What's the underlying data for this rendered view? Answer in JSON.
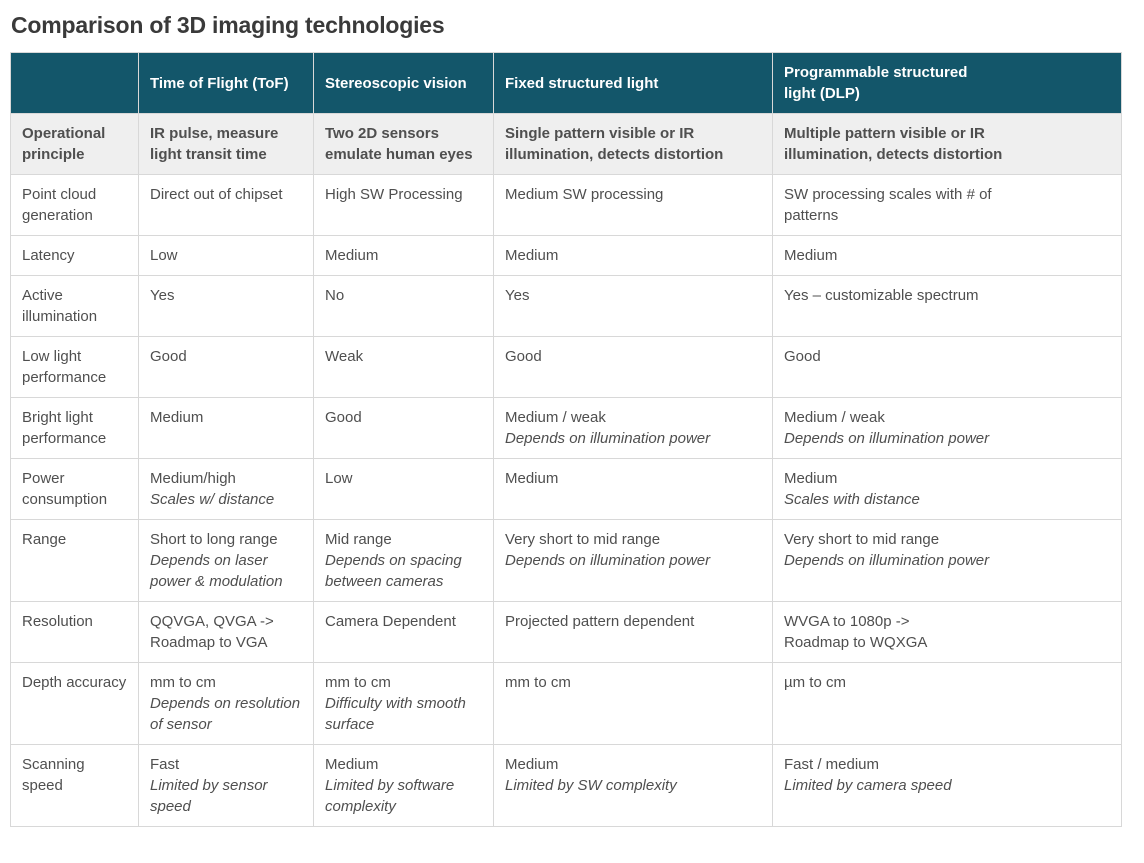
{
  "title": "Comparison of 3D imaging technologies",
  "colors": {
    "header_bg": "#13566a",
    "header_text": "#ffffff",
    "subheader_bg": "#efefef",
    "border": "#d8d8d8",
    "body_text": "#4f4f4f",
    "title_text": "#3a3a3a"
  },
  "table": {
    "columns": [
      "",
      "Time of Flight (ToF)",
      "Stereoscopic vision",
      "Fixed structured light",
      "Programmable structured\nlight (DLP)"
    ],
    "rows": [
      {
        "label": "Operational principle",
        "emphasized": true,
        "cells": [
          {
            "main": "IR pulse, measure light transit time"
          },
          {
            "main": "Two 2D sensors emulate human eyes"
          },
          {
            "main": "Single pattern visible or IR\nillumination, detects distortion"
          },
          {
            "main": "Multiple pattern visible or IR\nillumination, detects distortion"
          }
        ]
      },
      {
        "label": "Point cloud generation",
        "cells": [
          {
            "main": "Direct out of chipset"
          },
          {
            "main": "High SW Processing"
          },
          {
            "main": "Medium SW processing"
          },
          {
            "main": "SW processing scales with # of\npatterns"
          }
        ]
      },
      {
        "label": "Latency",
        "cells": [
          {
            "main": "Low"
          },
          {
            "main": "Medium"
          },
          {
            "main": "Medium"
          },
          {
            "main": "Medium"
          }
        ]
      },
      {
        "label": "Active illumination",
        "cells": [
          {
            "main": "Yes"
          },
          {
            "main": "No"
          },
          {
            "main": "Yes"
          },
          {
            "main": "Yes – customizable spectrum"
          }
        ]
      },
      {
        "label": "Low light performance",
        "cells": [
          {
            "main": "Good"
          },
          {
            "main": "Weak"
          },
          {
            "main": "Good"
          },
          {
            "main": "Good"
          }
        ]
      },
      {
        "label": "Bright light performance",
        "cells": [
          {
            "main": "Medium"
          },
          {
            "main": "Good"
          },
          {
            "main": "Medium / weak",
            "note": "Depends on illumination power"
          },
          {
            "main": "Medium / weak",
            "note": "Depends on illumination power"
          }
        ]
      },
      {
        "label": "Power consumption",
        "cells": [
          {
            "main": "Medium/high",
            "note": "Scales w/ distance"
          },
          {
            "main": "Low"
          },
          {
            "main": "Medium"
          },
          {
            "main": "Medium",
            "note": "Scales with distance"
          }
        ]
      },
      {
        "label": "Range",
        "cells": [
          {
            "main": "Short to long range",
            "note": "Depends on laser power & modulation"
          },
          {
            "main": "Mid range",
            "note": "Depends on spacing between cameras"
          },
          {
            "main": "Very short to mid range",
            "note": "Depends on illumination power"
          },
          {
            "main": "Very short to mid range",
            "note": "Depends on illumination power"
          }
        ]
      },
      {
        "label": "Resolution",
        "cells": [
          {
            "main": "QQVGA, QVGA ->\nRoadmap to VGA"
          },
          {
            "main": "Camera Dependent"
          },
          {
            "main": "Projected pattern dependent"
          },
          {
            "main": "WVGA to 1080p ->\nRoadmap to WQXGA"
          }
        ]
      },
      {
        "label": "Depth accuracy",
        "cells": [
          {
            "main": "mm to cm",
            "note": "Depends on resolution of sensor"
          },
          {
            "main": "mm to cm",
            "note": "Difficulty with smooth surface"
          },
          {
            "main": "mm to cm"
          },
          {
            "main": "µm to cm"
          }
        ]
      },
      {
        "label": "Scanning speed",
        "cells": [
          {
            "main": "Fast",
            "note": "Limited by sensor speed"
          },
          {
            "main": "Medium",
            "note": "Limited by software complexity"
          },
          {
            "main": "Medium",
            "note": "Limited by SW complexity"
          },
          {
            "main": "Fast / medium",
            "note": "Limited by camera speed"
          }
        ]
      }
    ]
  }
}
